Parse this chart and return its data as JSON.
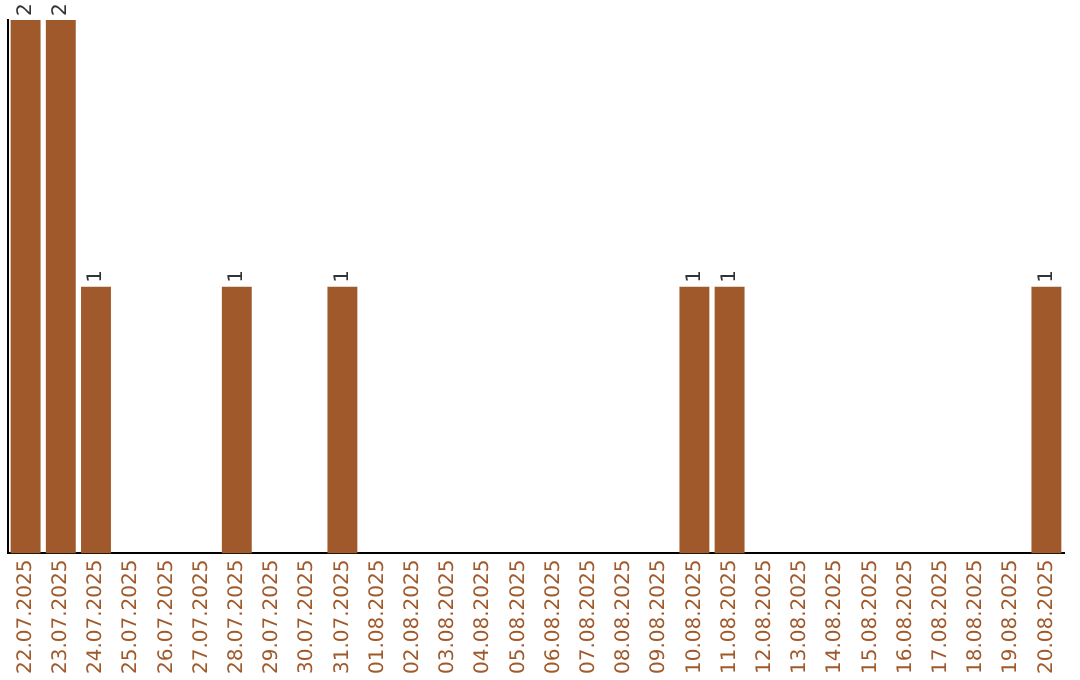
{
  "chart_data": {
    "type": "bar",
    "categories": [
      "22.07.2025",
      "23.07.2025",
      "24.07.2025",
      "25.07.2025",
      "26.07.2025",
      "27.07.2025",
      "28.07.2025",
      "29.07.2025",
      "30.07.2025",
      "31.07.2025",
      "01.08.2025",
      "02.08.2025",
      "03.08.2025",
      "04.08.2025",
      "05.08.2025",
      "06.08.2025",
      "07.08.2025",
      "08.08.2025",
      "09.08.2025",
      "10.08.2025",
      "11.08.2025",
      "12.08.2025",
      "13.08.2025",
      "14.08.2025",
      "15.08.2025",
      "16.08.2025",
      "17.08.2025",
      "18.08.2025",
      "19.08.2025",
      "20.08.2025"
    ],
    "values": [
      2,
      2,
      1,
      0,
      0,
      0,
      1,
      0,
      0,
      1,
      0,
      0,
      0,
      0,
      0,
      0,
      0,
      0,
      0,
      1,
      1,
      0,
      0,
      0,
      0,
      0,
      0,
      0,
      0,
      1
    ],
    "value_labels": [
      "2",
      "2",
      "1",
      null,
      null,
      null,
      "1",
      null,
      null,
      "1",
      null,
      null,
      null,
      null,
      null,
      null,
      null,
      null,
      null,
      "1",
      "1",
      null,
      null,
      null,
      null,
      null,
      null,
      null,
      null,
      "1"
    ],
    "color": "#a0592a",
    "tick_labels": "x",
    "grid": false,
    "legend": false
  }
}
